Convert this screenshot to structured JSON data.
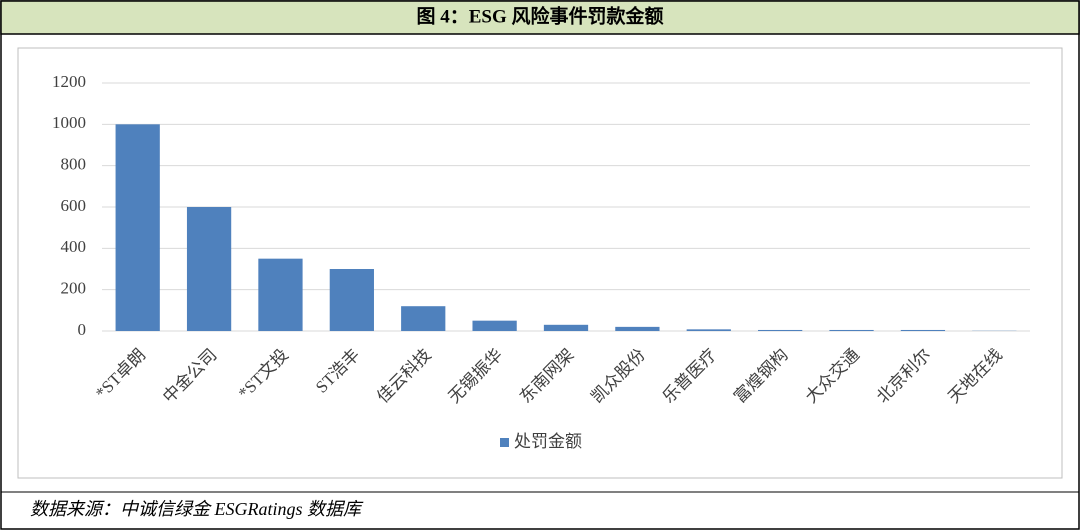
{
  "chart_data": {
    "type": "bar",
    "title": "图 4：ESG 风险事件罚款金额",
    "source": "数据来源：中诚信绿金 ESGRatings 数据库",
    "categories": [
      "*ST卓朗",
      "中金公司",
      "*ST文投",
      "ST浩丰",
      "佳云科技",
      "无锡振华",
      "东南网架",
      "凯众股份",
      "乐普医疗",
      "富煌钢构",
      "大众交通",
      "北京利尔",
      "天地在线"
    ],
    "series": [
      {
        "name": "处罚金额",
        "color": "#4f81bd",
        "values": [
          1000,
          600,
          350,
          300,
          120,
          50,
          30,
          20,
          8,
          5,
          5,
          5,
          1
        ]
      }
    ],
    "ylim": [
      0,
      1200
    ],
    "yticks": [
      0,
      200,
      400,
      600,
      800,
      1000,
      1200
    ],
    "grid": true,
    "legend": "bottom"
  }
}
